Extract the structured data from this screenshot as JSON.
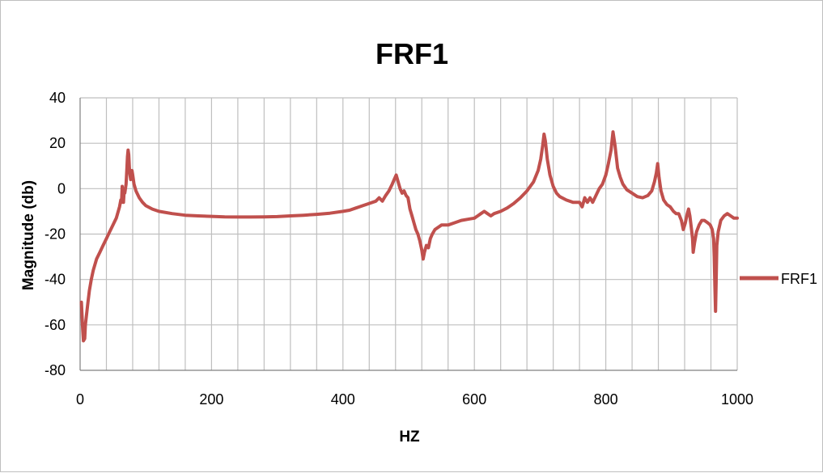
{
  "chart_data": {
    "type": "line",
    "title": "FRF1",
    "xlabel": "HZ",
    "ylabel": "Magnitude (db)",
    "xlim": [
      0,
      1000
    ],
    "ylim": [
      -80,
      40
    ],
    "x_ticks": [
      0,
      200,
      400,
      600,
      800,
      1000
    ],
    "x_tick_labels": [
      "0",
      "200",
      "400",
      "600",
      "800",
      "1000"
    ],
    "y_ticks": [
      40,
      20,
      0,
      -20,
      -40,
      -60,
      -80
    ],
    "y_tick_labels": [
      "40",
      "20",
      "0",
      "-20",
      "-40",
      "-60",
      "-80"
    ],
    "x_minor_gridline_step": 40,
    "grid": true,
    "legend_position": "right",
    "line_color": "#C0504D",
    "series": [
      {
        "name": "FRF1",
        "color": "#C0504D",
        "points": [
          [
            2,
            -50
          ],
          [
            4,
            -62
          ],
          [
            5,
            -67
          ],
          [
            7,
            -66
          ],
          [
            8,
            -60
          ],
          [
            10,
            -55
          ],
          [
            12,
            -50
          ],
          [
            14,
            -45
          ],
          [
            17,
            -40
          ],
          [
            20,
            -36
          ],
          [
            25,
            -31
          ],
          [
            30,
            -28
          ],
          [
            35,
            -25
          ],
          [
            40,
            -22
          ],
          [
            45,
            -19
          ],
          [
            50,
            -16
          ],
          [
            55,
            -13
          ],
          [
            58,
            -10
          ],
          [
            60,
            -8
          ],
          [
            62,
            -5
          ],
          [
            63,
            -6
          ],
          [
            64,
            1
          ],
          [
            65,
            -3
          ],
          [
            66,
            -6
          ],
          [
            67,
            -1
          ],
          [
            68,
            -2
          ],
          [
            70,
            2
          ],
          [
            71,
            8
          ],
          [
            72,
            14
          ],
          [
            73,
            17
          ],
          [
            74,
            15
          ],
          [
            75,
            9
          ],
          [
            76,
            6
          ],
          [
            77,
            4
          ],
          [
            78,
            6
          ],
          [
            79,
            8
          ],
          [
            80,
            6
          ],
          [
            82,
            2
          ],
          [
            85,
            -1
          ],
          [
            90,
            -4
          ],
          [
            95,
            -6
          ],
          [
            100,
            -7.5
          ],
          [
            110,
            -9
          ],
          [
            120,
            -10
          ],
          [
            140,
            -11
          ],
          [
            160,
            -11.7
          ],
          [
            180,
            -12
          ],
          [
            200,
            -12.2
          ],
          [
            220,
            -12.4
          ],
          [
            240,
            -12.5
          ],
          [
            260,
            -12.5
          ],
          [
            280,
            -12.4
          ],
          [
            300,
            -12.3
          ],
          [
            320,
            -12
          ],
          [
            340,
            -11.7
          ],
          [
            360,
            -11.3
          ],
          [
            380,
            -10.8
          ],
          [
            400,
            -10
          ],
          [
            410,
            -9.5
          ],
          [
            420,
            -8.5
          ],
          [
            430,
            -7.5
          ],
          [
            440,
            -6.5
          ],
          [
            450,
            -5.5
          ],
          [
            455,
            -4
          ],
          [
            460,
            -5.5
          ],
          [
            465,
            -3
          ],
          [
            470,
            -1
          ],
          [
            475,
            2
          ],
          [
            478,
            4
          ],
          [
            481,
            6
          ],
          [
            484,
            3
          ],
          [
            487,
            0
          ],
          [
            490,
            -2
          ],
          [
            493,
            -1
          ],
          [
            496,
            -3
          ],
          [
            499,
            -4
          ],
          [
            502,
            -9
          ],
          [
            505,
            -12
          ],
          [
            508,
            -15
          ],
          [
            511,
            -18
          ],
          [
            514,
            -20
          ],
          [
            517,
            -23
          ],
          [
            520,
            -27
          ],
          [
            522,
            -31
          ],
          [
            524,
            -28
          ],
          [
            527,
            -25
          ],
          [
            530,
            -26
          ],
          [
            533,
            -22
          ],
          [
            536,
            -20
          ],
          [
            540,
            -18
          ],
          [
            545,
            -17
          ],
          [
            550,
            -16
          ],
          [
            560,
            -16
          ],
          [
            570,
            -15
          ],
          [
            580,
            -14
          ],
          [
            590,
            -13.5
          ],
          [
            600,
            -13
          ],
          [
            605,
            -12
          ],
          [
            610,
            -11
          ],
          [
            615,
            -10
          ],
          [
            620,
            -11
          ],
          [
            625,
            -12
          ],
          [
            630,
            -11
          ],
          [
            640,
            -10
          ],
          [
            650,
            -8.5
          ],
          [
            660,
            -6.5
          ],
          [
            670,
            -4
          ],
          [
            680,
            -1
          ],
          [
            690,
            3
          ],
          [
            697,
            8
          ],
          [
            701,
            13
          ],
          [
            704,
            19
          ],
          [
            706,
            24
          ],
          [
            708,
            21
          ],
          [
            711,
            13
          ],
          [
            715,
            6
          ],
          [
            720,
            1
          ],
          [
            725,
            -2
          ],
          [
            730,
            -3.5
          ],
          [
            740,
            -5
          ],
          [
            750,
            -6
          ],
          [
            760,
            -6
          ],
          [
            764,
            -8
          ],
          [
            768,
            -4
          ],
          [
            772,
            -6
          ],
          [
            776,
            -4
          ],
          [
            780,
            -6
          ],
          [
            785,
            -3
          ],
          [
            790,
            0
          ],
          [
            795,
            2
          ],
          [
            800,
            6
          ],
          [
            804,
            11
          ],
          [
            808,
            17
          ],
          [
            811,
            25
          ],
          [
            814,
            19
          ],
          [
            818,
            9
          ],
          [
            822,
            5
          ],
          [
            826,
            2
          ],
          [
            832,
            -0.5
          ],
          [
            840,
            -2
          ],
          [
            848,
            -3.5
          ],
          [
            856,
            -4
          ],
          [
            864,
            -3
          ],
          [
            870,
            -1
          ],
          [
            874,
            3
          ],
          [
            877,
            7
          ],
          [
            879,
            11
          ],
          [
            881,
            5
          ],
          [
            884,
            -1
          ],
          [
            888,
            -5
          ],
          [
            893,
            -7
          ],
          [
            898,
            -8
          ],
          [
            903,
            -10
          ],
          [
            907,
            -11
          ],
          [
            911,
            -11
          ],
          [
            915,
            -14
          ],
          [
            918,
            -18
          ],
          [
            921,
            -15
          ],
          [
            924,
            -11
          ],
          [
            926,
            -9
          ],
          [
            928,
            -12
          ],
          [
            930,
            -17
          ],
          [
            932,
            -22
          ],
          [
            933,
            -28
          ],
          [
            935,
            -24
          ],
          [
            938,
            -19
          ],
          [
            942,
            -16
          ],
          [
            946,
            -14
          ],
          [
            950,
            -14
          ],
          [
            955,
            -15
          ],
          [
            959,
            -16
          ],
          [
            962,
            -18
          ],
          [
            964,
            -22
          ],
          [
            965,
            -30
          ],
          [
            966,
            -43
          ],
          [
            967,
            -54
          ],
          [
            968,
            -40
          ],
          [
            969,
            -25
          ],
          [
            971,
            -19
          ],
          [
            975,
            -14
          ],
          [
            980,
            -12
          ],
          [
            985,
            -11
          ],
          [
            990,
            -12
          ],
          [
            995,
            -13
          ],
          [
            1000,
            -13
          ]
        ]
      }
    ]
  }
}
